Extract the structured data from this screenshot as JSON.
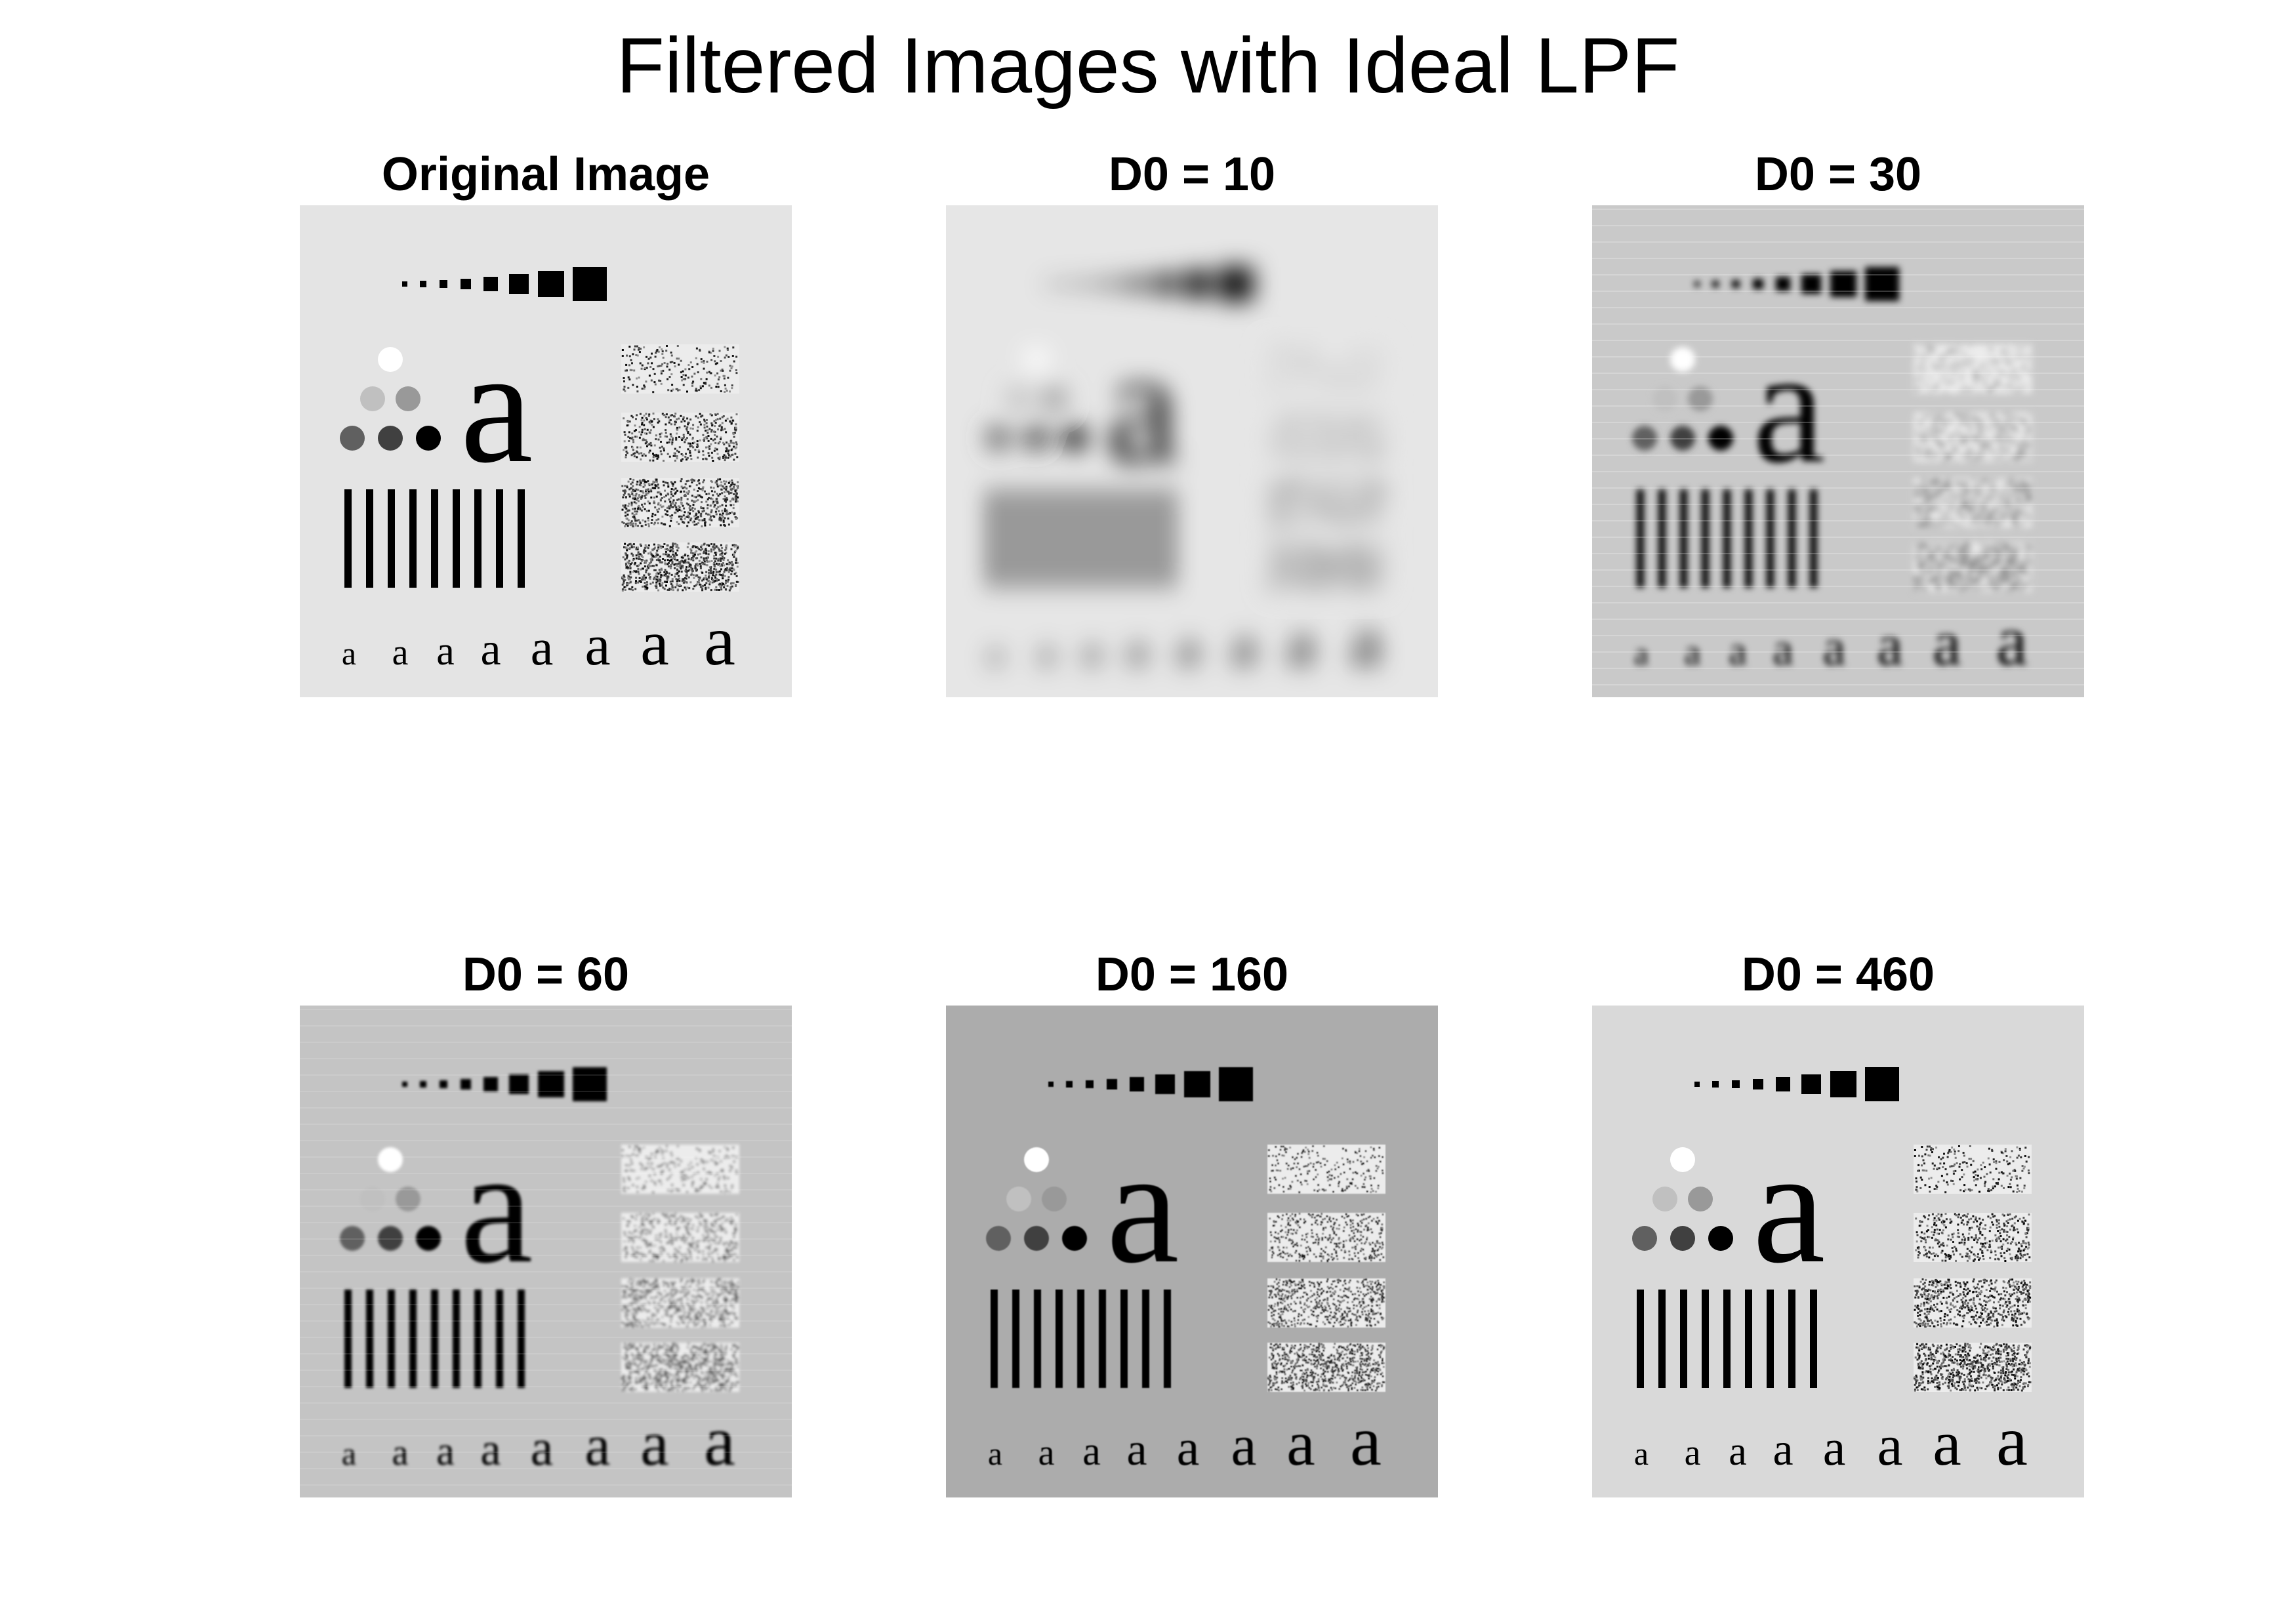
{
  "figure": {
    "title": "Filtered Images with Ideal LPF"
  },
  "panels": [
    {
      "title": "Original Image",
      "variant": "original",
      "background": "#e4e4e4"
    },
    {
      "title": "D0 = 10",
      "variant": "d10",
      "background": "#e6e6e6"
    },
    {
      "title": "D0 = 30",
      "variant": "d30",
      "background": "#c9c9c9"
    },
    {
      "title": "D0 = 60",
      "variant": "d60",
      "background": "#c4c4c4"
    },
    {
      "title": "D0 = 160",
      "variant": "d160",
      "background": "#acacac"
    },
    {
      "title": "D0 = 460",
      "variant": "d460",
      "background": "#d9d9d9"
    }
  ],
  "test_pattern": {
    "letter": "a"
  }
}
